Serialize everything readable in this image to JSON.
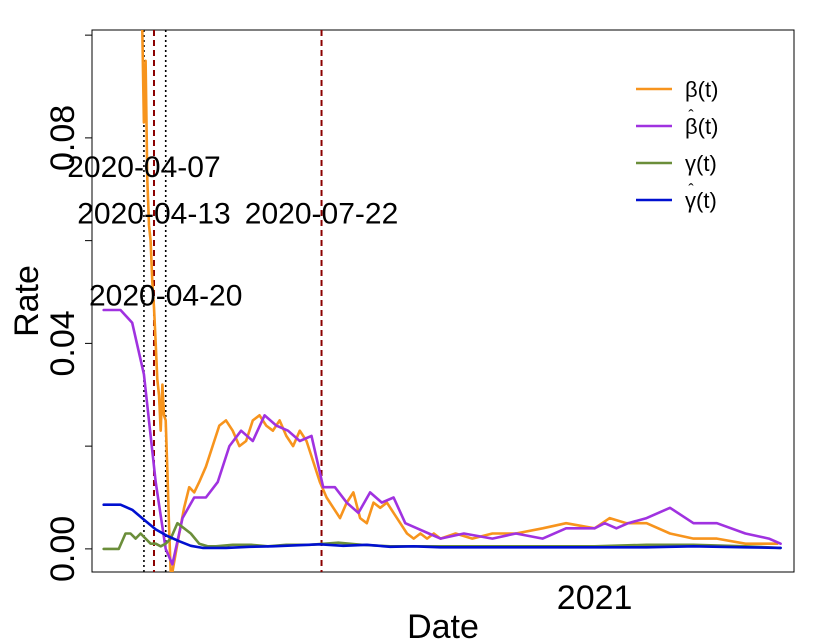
{
  "chart_data": {
    "type": "line",
    "title": "",
    "xlabel": "Date",
    "ylabel": "Rate",
    "xlim": [
      "2020-03-07",
      "2021-04-30"
    ],
    "ylim": [
      -0.0045,
      0.101
    ],
    "yticks": [
      0.0,
      0.04,
      0.08
    ],
    "ytick_labels": [
      "0.00",
      "0.04",
      "0.08"
    ],
    "xticks": [
      "2021-01-01"
    ],
    "xtick_labels": [
      "2021"
    ],
    "grid": false,
    "legend_position": "top-right",
    "colors": {
      "beta": "#f7941d",
      "beta_hat": "#a032e0",
      "gamma": "#6b8e3a",
      "gamma_hat": "#0010d0",
      "dark_red": "#8b0000"
    },
    "annotations": [
      {
        "label": "2020-04-07",
        "x": "2020-04-07",
        "y": 0.0745,
        "color": "#000000",
        "line_color": "#000000",
        "line_style": "dotted"
      },
      {
        "label": "2020-04-13",
        "x": "2020-04-13",
        "y": 0.0655,
        "color": "#8b0000",
        "line_color": "#8b0000",
        "line_style": "dashed"
      },
      {
        "label": "2020-04-20",
        "x": "2020-04-20",
        "y": 0.0495,
        "color": "#000000",
        "line_color": "#000000",
        "line_style": "dotted"
      },
      {
        "label": "2020-07-22",
        "x": "2020-07-22",
        "y": 0.0655,
        "color": "#8b0000",
        "line_color": "#8b0000",
        "line_style": "dashed"
      }
    ],
    "series": [
      {
        "name": "β(t)",
        "legend_label": "β(t)",
        "color": "#f7941d",
        "x": [
          "2020-04-06",
          "2020-04-07",
          "2020-04-08",
          "2020-04-09",
          "2020-04-10",
          "2020-04-11",
          "2020-04-12",
          "2020-04-13",
          "2020-04-14",
          "2020-04-15",
          "2020-04-16",
          "2020-04-17",
          "2020-04-18",
          "2020-04-19",
          "2020-04-20",
          "2020-04-21",
          "2020-04-22",
          "2020-04-23",
          "2020-04-24",
          "2020-04-27",
          "2020-05-01",
          "2020-05-04",
          "2020-05-07",
          "2020-05-10",
          "2020-05-14",
          "2020-05-18",
          "2020-05-22",
          "2020-05-26",
          "2020-05-30",
          "2020-06-03",
          "2020-06-07",
          "2020-06-11",
          "2020-06-15",
          "2020-06-19",
          "2020-06-23",
          "2020-06-27",
          "2020-07-01",
          "2020-07-05",
          "2020-07-09",
          "2020-07-13",
          "2020-07-17",
          "2020-07-21",
          "2020-07-25",
          "2020-07-29",
          "2020-08-02",
          "2020-08-06",
          "2020-08-10",
          "2020-08-14",
          "2020-08-18",
          "2020-08-22",
          "2020-08-26",
          "2020-08-30",
          "2020-09-03",
          "2020-09-07",
          "2020-09-11",
          "2020-09-15",
          "2020-09-19",
          "2020-09-23",
          "2020-09-27",
          "2020-10-01",
          "2020-10-10",
          "2020-10-20",
          "2020-11-01",
          "2020-11-15",
          "2020-12-01",
          "2020-12-15",
          "2021-01-01",
          "2021-01-10",
          "2021-01-20",
          "2021-02-01",
          "2021-02-15",
          "2021-03-01",
          "2021-03-15",
          "2021-04-01",
          "2021-04-10",
          "2021-04-20"
        ],
        "values": [
          0.101,
          0.083,
          0.095,
          0.072,
          0.063,
          0.06,
          0.052,
          0.047,
          0.04,
          0.033,
          0.03,
          0.023,
          0.032,
          0.026,
          0.025,
          0.015,
          0.004,
          -0.0045,
          -0.0045,
          0.001,
          0.008,
          0.012,
          0.011,
          0.013,
          0.016,
          0.02,
          0.024,
          0.025,
          0.023,
          0.02,
          0.021,
          0.025,
          0.026,
          0.024,
          0.023,
          0.025,
          0.022,
          0.02,
          0.023,
          0.021,
          0.017,
          0.013,
          0.01,
          0.008,
          0.006,
          0.009,
          0.011,
          0.006,
          0.005,
          0.009,
          0.008,
          0.009,
          0.007,
          0.005,
          0.003,
          0.002,
          0.003,
          0.002,
          0.003,
          0.002,
          0.003,
          0.002,
          0.003,
          0.003,
          0.004,
          0.005,
          0.004,
          0.006,
          0.005,
          0.005,
          0.003,
          0.002,
          0.002,
          0.001,
          0.001,
          0.001
        ]
      },
      {
        "name": "β̂(t)",
        "legend_label": "β(t)",
        "legend_hat": true,
        "color": "#a032e0",
        "x": [
          "2020-03-14",
          "2020-03-24",
          "2020-03-31",
          "2020-04-07",
          "2020-04-14",
          "2020-04-20",
          "2020-04-24",
          "2020-04-30",
          "2020-05-07",
          "2020-05-14",
          "2020-05-21",
          "2020-05-28",
          "2020-06-04",
          "2020-06-11",
          "2020-06-18",
          "2020-06-25",
          "2020-07-02",
          "2020-07-09",
          "2020-07-16",
          "2020-07-23",
          "2020-07-30",
          "2020-08-06",
          "2020-08-13",
          "2020-08-20",
          "2020-08-27",
          "2020-09-03",
          "2020-09-10",
          "2020-09-17",
          "2020-09-24",
          "2020-10-01",
          "2020-10-15",
          "2020-11-01",
          "2020-11-15",
          "2020-12-01",
          "2020-12-15",
          "2021-01-01",
          "2021-01-07",
          "2021-01-14",
          "2021-01-21",
          "2021-02-01",
          "2021-02-15",
          "2021-03-01",
          "2021-03-15",
          "2021-04-01",
          "2021-04-15",
          "2021-04-22"
        ],
        "values": [
          0.0465,
          0.0465,
          0.044,
          0.034,
          0.013,
          0.0,
          -0.003,
          0.006,
          0.01,
          0.01,
          0.013,
          0.02,
          0.023,
          0.021,
          0.026,
          0.024,
          0.023,
          0.021,
          0.022,
          0.012,
          0.012,
          0.009,
          0.007,
          0.011,
          0.009,
          0.01,
          0.005,
          0.004,
          0.003,
          0.002,
          0.003,
          0.002,
          0.003,
          0.002,
          0.004,
          0.004,
          0.005,
          0.004,
          0.005,
          0.006,
          0.008,
          0.005,
          0.005,
          0.003,
          0.002,
          0.001
        ]
      },
      {
        "name": "γ(t)",
        "legend_label": "γ(t)",
        "color": "#6b8e3a",
        "x": [
          "2020-03-14",
          "2020-03-23",
          "2020-03-27",
          "2020-03-30",
          "2020-04-02",
          "2020-04-05",
          "2020-04-08",
          "2020-04-11",
          "2020-04-14",
          "2020-04-17",
          "2020-04-20",
          "2020-04-23",
          "2020-04-27",
          "2020-05-01",
          "2020-05-05",
          "2020-05-10",
          "2020-05-15",
          "2020-05-20",
          "2020-05-30",
          "2020-06-10",
          "2020-06-20",
          "2020-07-01",
          "2020-07-15",
          "2020-08-01",
          "2020-08-15",
          "2020-09-01",
          "2020-10-01",
          "2020-11-01",
          "2020-12-01",
          "2021-01-01",
          "2021-02-01",
          "2021-03-01",
          "2021-04-01",
          "2021-04-22"
        ],
        "values": [
          0.0,
          0.0,
          0.003,
          0.003,
          0.002,
          0.003,
          0.002,
          0.001,
          0.001,
          0.0005,
          0.001,
          0.002,
          0.005,
          0.004,
          0.003,
          0.001,
          0.0005,
          0.0005,
          0.0008,
          0.0008,
          0.0005,
          0.0008,
          0.0008,
          0.0012,
          0.0008,
          0.0005,
          0.0005,
          0.0005,
          0.0005,
          0.0005,
          0.0008,
          0.0008,
          0.0005,
          0.0002
        ]
      },
      {
        "name": "γ̂(t)",
        "legend_label": "γ(t)",
        "legend_hat": true,
        "color": "#0010d0",
        "x": [
          "2020-03-14",
          "2020-03-24",
          "2020-03-31",
          "2020-04-07",
          "2020-04-14",
          "2020-04-21",
          "2020-04-28",
          "2020-05-05",
          "2020-05-12",
          "2020-05-19",
          "2020-05-26",
          "2020-06-09",
          "2020-06-23",
          "2020-07-07",
          "2020-07-21",
          "2020-08-04",
          "2020-08-18",
          "2020-09-01",
          "2020-09-15",
          "2020-10-01",
          "2020-11-01",
          "2020-12-01",
          "2021-01-01",
          "2021-02-01",
          "2021-03-01",
          "2021-04-01",
          "2021-04-22"
        ],
        "values": [
          0.0086,
          0.0086,
          0.0076,
          0.0057,
          0.0038,
          0.0025,
          0.0015,
          0.0006,
          0.0002,
          0.0002,
          0.0002,
          0.0004,
          0.0005,
          0.0007,
          0.0009,
          0.0006,
          0.0008,
          0.0004,
          0.0005,
          0.0003,
          0.0003,
          0.0003,
          0.0003,
          0.0003,
          0.0005,
          0.0003,
          0.0002
        ]
      }
    ]
  }
}
